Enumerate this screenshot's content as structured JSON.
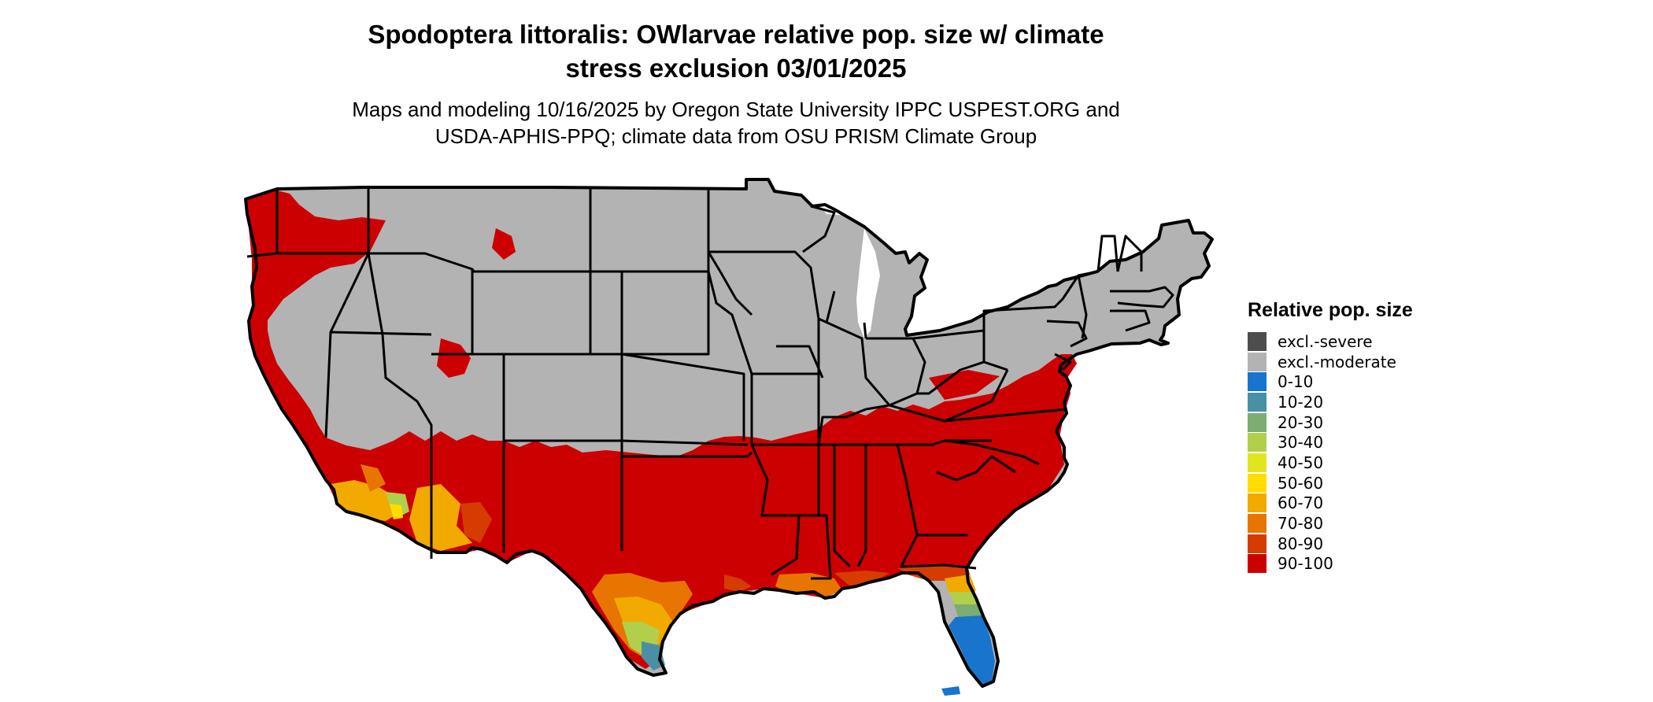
{
  "title_line1": "Spodoptera littoralis: OWlarvae relative pop. size w/ climate",
  "title_line2": "stress exclusion 03/01/2025",
  "subtitle_line1": "Maps and modeling 10/16/2025 by Oregon State University IPPC USPEST.ORG and",
  "subtitle_line2": "USDA-APHIS-PPQ; climate data from OSU PRISM Climate Group",
  "legend": {
    "title": "Relative pop. size",
    "items": [
      {
        "label": "excl.-severe",
        "color": "#4d4d4d"
      },
      {
        "label": "excl.-moderate",
        "color": "#b3b3b3"
      },
      {
        "label": "0-10",
        "color": "#1874cd"
      },
      {
        "label": "10-20",
        "color": "#4a90a4"
      },
      {
        "label": "20-30",
        "color": "#7cad72"
      },
      {
        "label": "30-40",
        "color": "#b1cf4a"
      },
      {
        "label": "40-50",
        "color": "#e1e51f"
      },
      {
        "label": "50-60",
        "color": "#ffdd00"
      },
      {
        "label": "60-70",
        "color": "#f2a900"
      },
      {
        "label": "70-80",
        "color": "#e87500"
      },
      {
        "label": "80-90",
        "color": "#d63c00"
      },
      {
        "label": "90-100",
        "color": "#cc0000"
      }
    ]
  },
  "map_colors": {
    "excl_moderate": "#b3b3b3",
    "high": "#cc0000",
    "mid_high": "#d63c00",
    "mid": "#e87500",
    "orange": "#f2a900",
    "yellow": "#ffdd00",
    "lime": "#b1cf4a",
    "green": "#7cad72",
    "teal": "#4a90a4",
    "blue": "#1874cd",
    "border": "#000000"
  }
}
